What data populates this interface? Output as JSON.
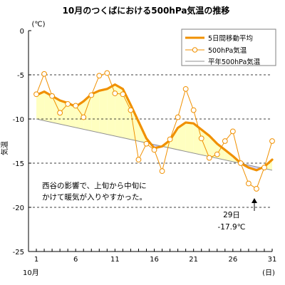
{
  "chart_data": {
    "type": "line",
    "title": "10月のつくばにおける500hPa気温の推移",
    "y_unit": "(℃)",
    "ylabel": "気温",
    "x_unit": "(日)",
    "x_month_label": "10月",
    "xlim": [
      0,
      31
    ],
    "ylim": [
      -25,
      0
    ],
    "y_ticks": [
      0,
      -5,
      -10,
      -15,
      -20,
      -25
    ],
    "y_gridlines_dashed": [
      -5,
      -10,
      -15,
      -20
    ],
    "x_tick_labels": [
      1,
      6,
      11,
      16,
      21,
      26,
      31
    ],
    "x_minor_ticks": [
      1,
      2,
      3,
      4,
      5,
      6,
      7,
      8,
      9,
      10,
      11,
      12,
      13,
      14,
      15,
      16,
      17,
      18,
      19,
      20,
      21,
      22,
      23,
      24,
      25,
      26,
      27,
      28,
      29,
      30,
      31
    ],
    "legend": [
      "5日間移動平均",
      "500hPa気温",
      "平年500hPa気温"
    ],
    "legend_position": "top-right",
    "series": [
      {
        "name": "5日間移動平均",
        "color": "#f09000",
        "x": [
          1,
          2,
          3,
          4,
          5,
          6,
          7,
          8,
          9,
          10,
          11,
          12,
          13,
          14,
          15,
          16,
          17,
          18,
          19,
          20,
          21,
          22,
          23,
          24,
          25,
          26,
          27,
          28,
          29,
          30,
          31
        ],
        "values": [
          -7.3,
          -6.9,
          -7.4,
          -7.9,
          -8.2,
          -8.6,
          -8.0,
          -7.2,
          -6.8,
          -6.6,
          -6.1,
          -6.6,
          -8.4,
          -10.3,
          -12.2,
          -13.3,
          -13.1,
          -12.4,
          -11.0,
          -10.4,
          -10.5,
          -11.2,
          -11.9,
          -12.8,
          -13.5,
          -14.2,
          -15.0,
          -15.5,
          -15.8,
          -15.4,
          -14.6
        ]
      },
      {
        "name": "500hPa気温",
        "color": "#f09000",
        "x": [
          1,
          2,
          3,
          4,
          5,
          6,
          7,
          8,
          9,
          10,
          11,
          12,
          13,
          14,
          15,
          16,
          17,
          18,
          19,
          20,
          21,
          22,
          23,
          24,
          25,
          26,
          27,
          28,
          29,
          30,
          31
        ],
        "values": [
          -7.2,
          -4.9,
          -7.4,
          -9.3,
          -8.3,
          -8.5,
          -9.8,
          -7.3,
          -5.1,
          -4.8,
          -7.1,
          -7.2,
          -9.0,
          -14.6,
          -12.8,
          -13.5,
          -15.9,
          -12.3,
          -9.8,
          -6.6,
          -9.0,
          -12.2,
          -14.4,
          -14.0,
          -12.5,
          -11.4,
          -15.0,
          -17.3,
          -17.9,
          -15.5,
          -12.5
        ]
      },
      {
        "name": "平年500hPa気温",
        "color": "#909090",
        "x": [
          1,
          31
        ],
        "values": [
          -10.0,
          -15.8
        ]
      }
    ],
    "fill_warm_color": "#ffffc0",
    "fill_cold_color": "#d0d0ff",
    "annotations": {
      "comment_line1": "西谷の影響で、上旬から中旬に",
      "comment_line2": "かけて暖気が入りやすかった。",
      "min_day": "29日",
      "min_value": "-17.9℃",
      "min_point": {
        "x": 29,
        "y": -17.9
      }
    }
  }
}
